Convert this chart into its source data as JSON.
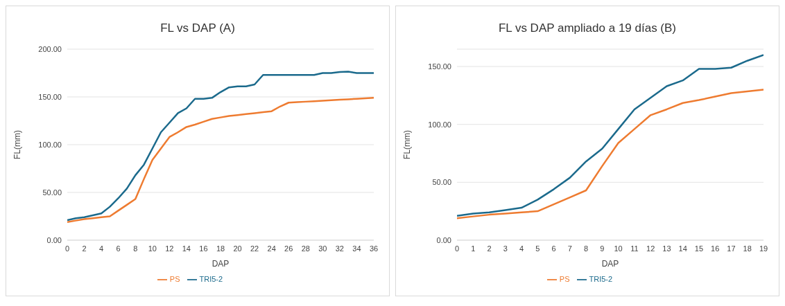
{
  "chart_data": [
    {
      "type": "line",
      "title": "FL vs DAP (A)",
      "xlabel": "DAP",
      "ylabel": "FL(mm)",
      "x": [
        0,
        1,
        2,
        3,
        4,
        5,
        6,
        7,
        8,
        9,
        10,
        11,
        12,
        13,
        14,
        15,
        16,
        17,
        18,
        19,
        20,
        21,
        22,
        23,
        24,
        25,
        26,
        27,
        28,
        29,
        30,
        31,
        32,
        33,
        34,
        35,
        36
      ],
      "xlim": [
        0,
        36
      ],
      "xticks": [
        0,
        2,
        4,
        6,
        8,
        10,
        12,
        14,
        16,
        18,
        20,
        22,
        24,
        26,
        28,
        30,
        32,
        34,
        36
      ],
      "ylim": [
        0,
        200
      ],
      "yticks": [
        {
          "value": 0,
          "label": "0.00"
        },
        {
          "value": 50,
          "label": "50.00"
        },
        {
          "value": 100,
          "label": "100.00"
        },
        {
          "value": 150,
          "label": "150.00"
        },
        {
          "value": 200,
          "label": "200.00"
        }
      ],
      "grid": "y",
      "legend": "bottom",
      "marker": "none",
      "series": [
        {
          "name": "TRI5-2",
          "color": "#1b6a8c",
          "values": [
            21,
            23,
            24,
            26,
            28,
            35,
            44,
            54,
            68,
            79,
            96,
            113,
            123,
            133,
            138,
            148,
            148,
            149,
            155,
            160,
            161,
            161,
            163,
            173,
            173,
            173,
            173,
            173,
            173,
            173,
            175,
            175,
            176,
            176.5,
            175,
            175,
            175
          ]
        },
        {
          "name": "PS",
          "color": "#ee7b30",
          "values": [
            19,
            20.5,
            22,
            23,
            24,
            25,
            31,
            37,
            43,
            64,
            84,
            96,
            108,
            113,
            118.5,
            121,
            124,
            127,
            128.5,
            130,
            131,
            132,
            133,
            134,
            135,
            140,
            144,
            144.5,
            145,
            145.5,
            146,
            146.5,
            147,
            147.5,
            148,
            148.5,
            149
          ]
        }
      ]
    },
    {
      "type": "line",
      "title": "FL vs DAP ampliado a 19 días (B)",
      "xlabel": "DAP",
      "ylabel": "FL(mm)",
      "x": [
        0,
        1,
        2,
        3,
        4,
        5,
        6,
        7,
        8,
        9,
        10,
        11,
        12,
        13,
        14,
        15,
        16,
        17,
        18,
        19
      ],
      "xlim": [
        0,
        19
      ],
      "xticks": [
        0,
        1,
        2,
        3,
        4,
        5,
        6,
        7,
        8,
        9,
        10,
        11,
        12,
        13,
        14,
        15,
        16,
        17,
        18,
        19
      ],
      "ylim": [
        0,
        165
      ],
      "yticks": [
        {
          "value": 0,
          "label": "0.00"
        },
        {
          "value": 50,
          "label": "50.00"
        },
        {
          "value": 100,
          "label": "100.00"
        },
        {
          "value": 150,
          "label": "150.00"
        }
      ],
      "grid": "y",
      "legend": "bottom",
      "marker": "none",
      "series": [
        {
          "name": "TRI5-2",
          "color": "#1b6a8c",
          "values": [
            21,
            23,
            24,
            26,
            28,
            35,
            44,
            54,
            68,
            79,
            96,
            113,
            123,
            133,
            138,
            148,
            148,
            149,
            155,
            160
          ]
        },
        {
          "name": "PS",
          "color": "#ee7b30",
          "values": [
            19,
            20.5,
            22,
            23,
            24,
            25,
            31,
            37,
            43,
            64,
            84,
            96,
            108,
            113,
            118.5,
            121,
            124,
            127,
            128.5,
            130
          ]
        }
      ]
    }
  ]
}
